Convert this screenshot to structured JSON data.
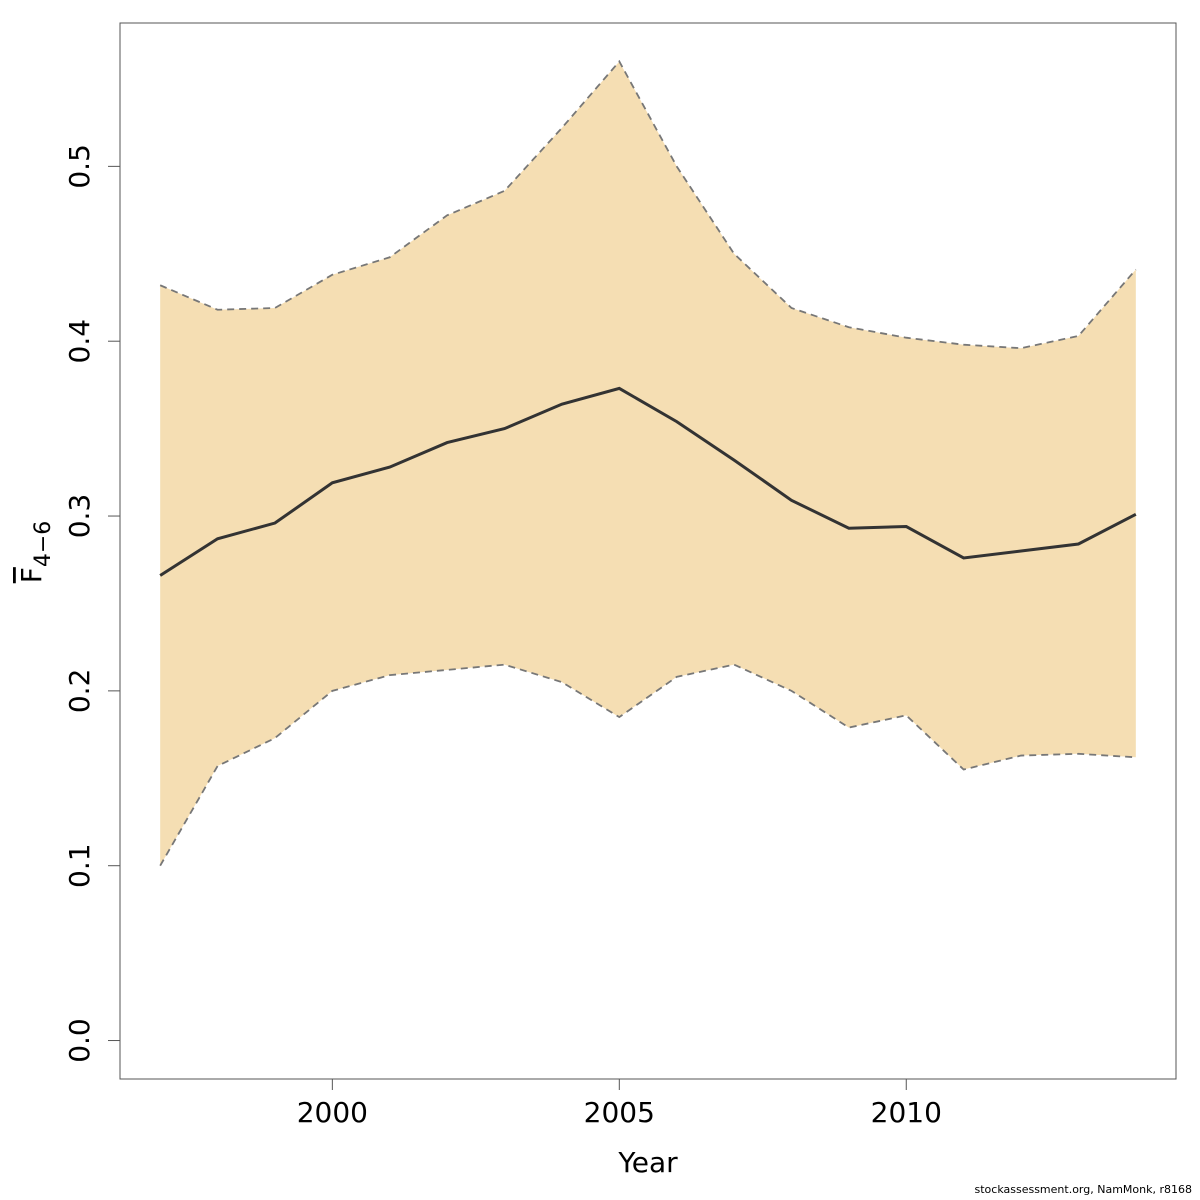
{
  "chart_data": {
    "type": "area",
    "xlabel": "Year",
    "ylabel": {
      "base": "F",
      "subscript": "4−6"
    },
    "xlim": [
      1996.3,
      2014.7
    ],
    "ylim": [
      -0.022,
      0.582
    ],
    "x_ticks": [
      2000,
      2005,
      2010
    ],
    "x_tick_labels": [
      "2000",
      "2005",
      "2010"
    ],
    "y_ticks": [
      0.0,
      0.1,
      0.2,
      0.3,
      0.4,
      0.5
    ],
    "y_tick_labels": [
      "0.0",
      "0.1",
      "0.2",
      "0.3",
      "0.4",
      "0.5"
    ],
    "grid": false,
    "x": [
      1997,
      1998,
      1999,
      2000,
      2001,
      2002,
      2003,
      2004,
      2005,
      2006,
      2007,
      2008,
      2009,
      2010,
      2011,
      2012,
      2013,
      2014
    ],
    "series": [
      {
        "values": [
          0.266,
          0.287,
          0.296,
          0.319,
          0.328,
          0.342,
          0.35,
          0.364,
          0.373,
          0.354,
          0.332,
          0.309,
          0.293,
          0.294,
          0.276,
          0.28,
          0.284,
          0.301
        ]
      },
      {
        "values": [
          0.432,
          0.418,
          0.419,
          0.438,
          0.448,
          0.472,
          0.486,
          0.522,
          0.56,
          0.5,
          0.45,
          0.419,
          0.408,
          0.402,
          0.398,
          0.396,
          0.403,
          0.441
        ]
      },
      {
        "values": [
          0.1,
          0.157,
          0.173,
          0.2,
          0.209,
          0.212,
          0.215,
          0.205,
          0.185,
          0.208,
          0.215,
          0.2,
          0.179,
          0.186,
          0.155,
          0.163,
          0.164,
          0.162
        ]
      }
    ],
    "band_fill": "#f5deb3",
    "line_color": "#333333",
    "bound_color": "#777777"
  },
  "footer": {
    "credit": "stockassessment.org, NamMonk, r8168"
  }
}
